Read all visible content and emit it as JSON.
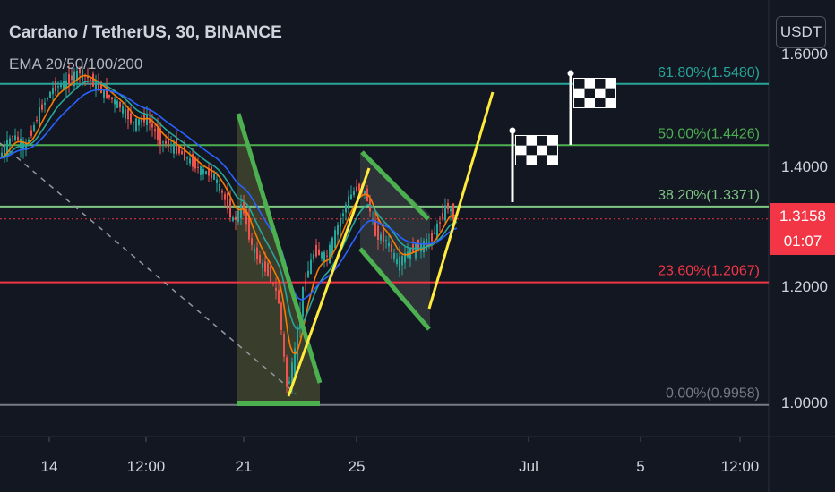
{
  "header": {
    "title": "Cardano / TetherUS, 30, BINANCE",
    "indicator": "EMA 20/50/100/200",
    "currency_button": "USDT"
  },
  "price_label": {
    "price": "1.3158",
    "countdown": "01:07"
  },
  "colors": {
    "background": "#131722",
    "price_red": "#f23645",
    "fib_618": "#26a69a",
    "fib_500": "#4caf50",
    "fib_382": "#81c784",
    "fib_236": "#f23645",
    "fib_000": "#787b86",
    "pattern_green": "#4caf50",
    "trend_yellow": "#ffeb3b"
  },
  "chart_data": {
    "type": "candlestick",
    "title": "Cardano / TetherUS, 30, BINANCE",
    "y_axis": {
      "ticks": [
        "1.6000",
        "1.4000",
        "1.2000",
        "1.0000"
      ]
    },
    "x_axis": {
      "ticks": [
        "14",
        "12:00",
        "21",
        "25",
        "Jul",
        "5",
        "12:00"
      ]
    },
    "fibonacci_levels": [
      {
        "label": "61.80%(1.5480)",
        "value": 1.548
      },
      {
        "label": "50.00%(1.4426)",
        "value": 1.4426
      },
      {
        "label": "38.20%(1.3371)",
        "value": 1.3371
      },
      {
        "label": "23.60%(1.2067)",
        "value": 1.2067
      },
      {
        "label": "0.00%(0.9958)",
        "value": 0.9958
      }
    ],
    "last_price": 1.3158,
    "price_path": [
      [
        0,
        1.42
      ],
      [
        15,
        1.46
      ],
      [
        30,
        1.44
      ],
      [
        45,
        1.5
      ],
      [
        60,
        1.54
      ],
      [
        75,
        1.55
      ],
      [
        90,
        1.57
      ],
      [
        105,
        1.55
      ],
      [
        120,
        1.53
      ],
      [
        135,
        1.51
      ],
      [
        150,
        1.48
      ],
      [
        165,
        1.49
      ],
      [
        180,
        1.45
      ],
      [
        195,
        1.44
      ],
      [
        210,
        1.42
      ],
      [
        225,
        1.4
      ],
      [
        240,
        1.39
      ],
      [
        255,
        1.34
      ],
      [
        262,
        1.31
      ],
      [
        272,
        1.34
      ],
      [
        282,
        1.27
      ],
      [
        292,
        1.24
      ],
      [
        302,
        1.22
      ],
      [
        312,
        1.18
      ],
      [
        322,
        1.02
      ],
      [
        330,
        1.08
      ],
      [
        340,
        1.2
      ],
      [
        352,
        1.26
      ],
      [
        366,
        1.25
      ],
      [
        380,
        1.31
      ],
      [
        390,
        1.35
      ],
      [
        400,
        1.37
      ],
      [
        410,
        1.36
      ],
      [
        420,
        1.29
      ],
      [
        432,
        1.28
      ],
      [
        445,
        1.24
      ],
      [
        458,
        1.26
      ],
      [
        472,
        1.27
      ],
      [
        482,
        1.28
      ],
      [
        492,
        1.31
      ],
      [
        500,
        1.34
      ],
      [
        510,
        1.3158
      ]
    ]
  }
}
